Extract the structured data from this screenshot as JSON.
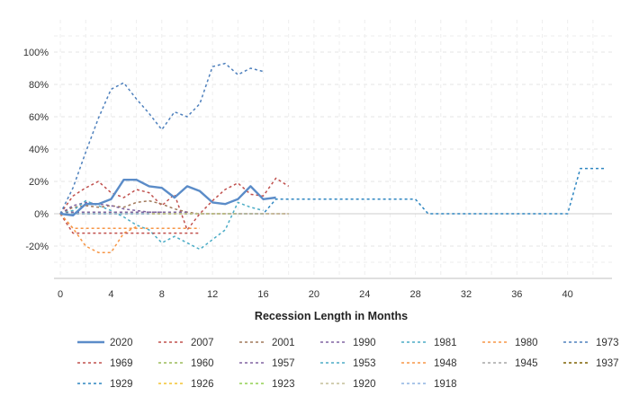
{
  "chart_data": {
    "type": "line",
    "title": "",
    "xlabel": "Recession Length in Months",
    "ylabel": "",
    "xlim": [
      -0.5,
      43.5
    ],
    "ylim": [
      -0.4,
      1.2
    ],
    "x_ticks": [
      0,
      4,
      8,
      12,
      16,
      20,
      24,
      28,
      32,
      36,
      40
    ],
    "x_tick_labels": [
      "0",
      "4",
      "8",
      "12",
      "16",
      "20",
      "24",
      "28",
      "32",
      "36",
      "40"
    ],
    "y_ticks": [
      -0.2,
      0,
      0.2,
      0.4,
      0.6,
      0.8,
      1.0
    ],
    "y_tick_labels": [
      "-20%",
      "0%",
      "20%",
      "40%",
      "60%",
      "80%",
      "100%"
    ],
    "grid": true,
    "legend_position": "bottom",
    "series": [
      {
        "name": "2020",
        "color": "#5b8cc8",
        "dash": "solid",
        "x": [
          0,
          1,
          2,
          3,
          4,
          5,
          6,
          7,
          8,
          9,
          10,
          11,
          12,
          13,
          14,
          15,
          16,
          17
        ],
        "values": [
          0,
          -0.01,
          0.06,
          0.06,
          0.09,
          0.21,
          0.21,
          0.17,
          0.16,
          0.1,
          0.17,
          0.14,
          0.07,
          0.06,
          0.09,
          0.17,
          0.09,
          0.1
        ]
      },
      {
        "name": "2007",
        "color": "#c0504d",
        "dash": "dashed",
        "x": [
          0,
          1,
          2,
          3,
          4,
          5,
          6,
          7,
          8,
          9,
          10,
          11,
          12,
          13,
          14,
          15,
          16,
          17,
          18
        ],
        "values": [
          0,
          0.11,
          0.16,
          0.2,
          0.13,
          0.1,
          0.15,
          0.13,
          0.05,
          0.12,
          -0.1,
          0.0,
          0.08,
          0.15,
          0.19,
          0.12,
          0.11,
          0.22,
          0.17
        ]
      },
      {
        "name": "2001",
        "color": "#a0785a",
        "dash": "dashed",
        "x": [
          0,
          1,
          2,
          3,
          4,
          5,
          6,
          7,
          8,
          9,
          10,
          11,
          12,
          13,
          14,
          15,
          16,
          17,
          18
        ],
        "values": [
          0,
          0.04,
          0.05,
          0.04,
          0.05,
          0.04,
          0.07,
          0.08,
          0.06,
          0.03,
          0.01,
          0.0,
          0.0,
          0.0,
          0.0,
          0.0,
          0.0,
          0.0,
          0.0
        ]
      },
      {
        "name": "1990",
        "color": "#8064a2",
        "dash": "dashed",
        "x": [
          0,
          1,
          2,
          3,
          4,
          5,
          6,
          7,
          8
        ],
        "values": [
          0,
          0.05,
          0.07,
          0.06,
          0.05,
          0.03,
          0.02,
          0.01,
          0.01
        ]
      },
      {
        "name": "1981",
        "color": "#4bacc6",
        "dash": "dashed",
        "x": [
          0,
          1,
          2,
          3,
          4,
          5,
          6,
          7,
          8,
          9,
          10,
          11,
          12,
          13,
          14,
          15,
          16
        ],
        "values": [
          0,
          0.02,
          0.08,
          0.05,
          0.02,
          -0.02,
          -0.07,
          -0.1,
          -0.18,
          -0.14,
          -0.18,
          -0.22,
          -0.16,
          -0.1,
          0.07,
          0.04,
          0.02
        ]
      },
      {
        "name": "1980",
        "color": "#f79646",
        "dash": "dashed",
        "x": [
          0,
          1,
          2,
          3,
          4,
          5,
          6
        ],
        "values": [
          0,
          -0.09,
          -0.2,
          -0.24,
          -0.24,
          -0.12,
          -0.08
        ]
      },
      {
        "name": "1973",
        "color": "#4f81bd",
        "dash": "dashed",
        "x": [
          0,
          1,
          2,
          3,
          4,
          5,
          6,
          7,
          8,
          9,
          10,
          11,
          12,
          13,
          14,
          15,
          16
        ],
        "values": [
          0,
          0.16,
          0.38,
          0.59,
          0.77,
          0.81,
          0.71,
          0.62,
          0.52,
          0.63,
          0.6,
          0.68,
          0.91,
          0.93,
          0.86,
          0.9,
          0.88
        ]
      },
      {
        "name": "1969",
        "color": "#c0504d",
        "dash": "dashed",
        "x": [
          0,
          1,
          2,
          3,
          4,
          5,
          6,
          7,
          8,
          9,
          10,
          11
        ],
        "values": [
          0,
          -0.12,
          -0.12,
          -0.12,
          -0.12,
          -0.12,
          -0.12,
          -0.12,
          -0.12,
          -0.12,
          -0.12,
          -0.12
        ]
      },
      {
        "name": "1960",
        "color": "#9bbb59",
        "dash": "dashed",
        "x": [
          0,
          1,
          2,
          3,
          4,
          5,
          6,
          7,
          8,
          9,
          10
        ],
        "values": [
          0,
          0.01,
          0.01,
          0.01,
          0.01,
          0.01,
          0.01,
          0.01,
          0.01,
          0.01,
          0.01
        ]
      },
      {
        "name": "1957",
        "color": "#8064a2",
        "dash": "dashed",
        "x": [
          0,
          1,
          2,
          3,
          4,
          5,
          6,
          7,
          8,
          9,
          10
        ],
        "values": [
          0,
          0.01,
          0.01,
          0.01,
          0.01,
          0.01,
          0.01,
          0.01,
          0.01,
          0.01,
          0.01
        ]
      },
      {
        "name": "1953",
        "color": "#4bacc6",
        "dash": "dashed",
        "x": [
          0,
          1,
          2,
          3,
          4,
          5,
          6,
          7,
          8,
          9,
          10
        ],
        "values": [
          0,
          0.0,
          0.0,
          0.0,
          0.0,
          0.0,
          0.0,
          0.0,
          0.0,
          0.0,
          0.0
        ]
      },
      {
        "name": "1948",
        "color": "#f79646",
        "dash": "dashed",
        "x": [
          0,
          1,
          2,
          3,
          4,
          5,
          6,
          7,
          8,
          9,
          10,
          11
        ],
        "values": [
          0,
          -0.09,
          -0.09,
          -0.09,
          -0.09,
          -0.09,
          -0.09,
          -0.09,
          -0.09,
          -0.09,
          -0.09,
          -0.09
        ]
      },
      {
        "name": "1945",
        "color": "#a5a5a5",
        "dash": "dashed",
        "x": [
          0,
          1,
          2,
          3,
          4,
          5,
          6,
          7,
          8
        ],
        "values": [
          0,
          0.0,
          0.0,
          0.0,
          0.0,
          0.0,
          0.0,
          0.0,
          0.0
        ]
      },
      {
        "name": "1937",
        "color": "#7f6000",
        "dash": "dashed",
        "x": [
          0,
          1,
          2,
          3,
          4,
          5,
          6,
          7,
          8,
          9,
          10,
          11,
          12,
          13
        ],
        "values": [
          0,
          0.0,
          0.0,
          0.0,
          0.0,
          0.0,
          0.0,
          0.0,
          0.0,
          0.0,
          0.0,
          0.0,
          0.0,
          0.0
        ]
      },
      {
        "name": "1929",
        "color": "#2e86c1",
        "dash": "dashed",
        "x": [
          0,
          16,
          17,
          18,
          19,
          20,
          21,
          22,
          23,
          24,
          25,
          26,
          27,
          28,
          29,
          30,
          31,
          32,
          33,
          34,
          35,
          36,
          37,
          38,
          39,
          40,
          41,
          42,
          43
        ],
        "values": [
          0,
          0.0,
          0.09,
          0.09,
          0.09,
          0.09,
          0.09,
          0.09,
          0.09,
          0.09,
          0.09,
          0.09,
          0.09,
          0.09,
          0.0,
          0.0,
          0.0,
          0.0,
          0.0,
          0.0,
          0.0,
          0.0,
          0.0,
          0.0,
          0.0,
          0.0,
          0.28,
          0.28,
          0.28
        ]
      },
      {
        "name": "1926",
        "color": "#f4c430",
        "dash": "dashed",
        "x": [
          0,
          13
        ],
        "values": [
          0,
          0.0
        ]
      },
      {
        "name": "1923",
        "color": "#92d050",
        "dash": "dashed",
        "x": [
          0,
          14
        ],
        "values": [
          0,
          0.0
        ]
      },
      {
        "name": "1920",
        "color": "#c4bd97",
        "dash": "dashed",
        "x": [
          0,
          18
        ],
        "values": [
          0,
          0.0
        ]
      },
      {
        "name": "1918",
        "color": "#8db3e2",
        "dash": "dashed",
        "x": [
          0,
          7
        ],
        "values": [
          0,
          0.0
        ]
      }
    ]
  }
}
